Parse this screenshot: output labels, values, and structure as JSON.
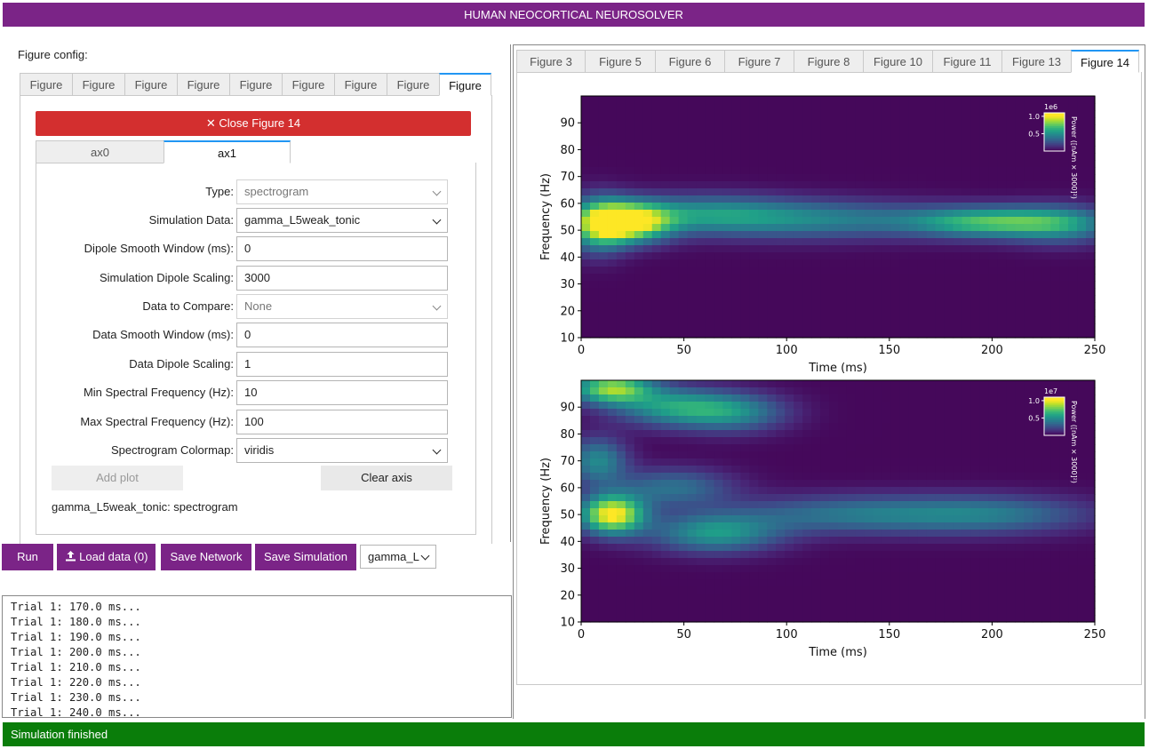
{
  "app_title": "HUMAN NEOCORTICAL NEUROSOLVER",
  "figure_config_label": "Figure config:",
  "figure_tabs": [
    "Figure",
    "Figure",
    "Figure",
    "Figure",
    "Figure",
    "Figure",
    "Figure",
    "Figure",
    "Figure"
  ],
  "close_button": "✕ Close Figure 14",
  "ax_tabs": [
    "ax0",
    "ax1"
  ],
  "form": {
    "type": {
      "label": "Type:",
      "value": "spectrogram"
    },
    "simulation_data": {
      "label": "Simulation Data:",
      "value": "gamma_L5weak_tonic"
    },
    "dipole_smooth": {
      "label": "Dipole Smooth Window (ms):",
      "value": "0"
    },
    "sim_dipole_scaling": {
      "label": "Simulation Dipole Scaling:",
      "value": "3000"
    },
    "data_to_compare": {
      "label": "Data to Compare:",
      "value": "None"
    },
    "data_smooth": {
      "label": "Data Smooth Window (ms):",
      "value": "0"
    },
    "data_dipole_scaling": {
      "label": "Data Dipole Scaling:",
      "value": "1"
    },
    "min_freq": {
      "label": "Min Spectral Frequency (Hz):",
      "value": "10"
    },
    "max_freq": {
      "label": "Max Spectral Frequency (Hz):",
      "value": "100"
    },
    "colormap": {
      "label": "Spectrogram Colormap:",
      "value": "viridis"
    }
  },
  "add_plot": "Add plot",
  "clear_axis": "Clear axis",
  "plot_description": "gamma_L5weak_tonic: spectrogram",
  "buttons": {
    "run": "Run",
    "load_data": "Load data (0)",
    "save_network": "Save Network",
    "save_simulation": "Save Simulation",
    "sim_select_value": "gamma_L"
  },
  "log_lines": [
    "Trial 1: 170.0 ms...",
    "Trial 1: 180.0 ms...",
    "Trial 1: 190.0 ms...",
    "Trial 1: 200.0 ms...",
    "Trial 1: 210.0 ms...",
    "Trial 1: 220.0 ms...",
    "Trial 1: 230.0 ms...",
    "Trial 1: 240.0 ms..."
  ],
  "right_tabs": [
    "Figure 3",
    "Figure 5",
    "Figure 6",
    "Figure 7",
    "Figure 8",
    "Figure 10",
    "Figure 11",
    "Figure 13",
    "Figure 14"
  ],
  "status": "Simulation finished",
  "colors": {
    "header": "#7b2487",
    "close": "#d32f2f",
    "status": "#0a7d0a",
    "tab_accent": "#2196f3"
  },
  "chart_data": [
    {
      "type": "heatmap",
      "xlabel": "Time (ms)",
      "ylabel": "Frequency (Hz)",
      "xlim": [
        0,
        250
      ],
      "ylim": [
        10,
        100
      ],
      "xticks": [
        0,
        50,
        100,
        150,
        200,
        250
      ],
      "yticks": [
        10,
        20,
        30,
        40,
        50,
        60,
        70,
        80,
        90
      ],
      "colormap": "viridis",
      "colorbar": {
        "label": "Power ([nAm × 3000]²)",
        "scale": "1e6",
        "ticks": [
          0.5,
          1.0
        ]
      },
      "blobs": [
        {
          "t": 23,
          "f": 53,
          "amp": 1.0,
          "st": 14,
          "sf": 5
        },
        {
          "t": 8,
          "f": 52,
          "amp": 0.6,
          "st": 10,
          "sf": 7
        },
        {
          "t": 60,
          "f": 56,
          "amp": 0.4,
          "st": 28,
          "sf": 5
        },
        {
          "t": 115,
          "f": 54,
          "amp": 0.4,
          "st": 40,
          "sf": 5
        },
        {
          "t": 200,
          "f": 53,
          "amp": 0.65,
          "st": 28,
          "sf": 4
        },
        {
          "t": 235,
          "f": 52,
          "amp": 0.35,
          "st": 18,
          "sf": 5
        }
      ]
    },
    {
      "type": "heatmap",
      "xlabel": "Time (ms)",
      "ylabel": "Frequency (Hz)",
      "xlim": [
        0,
        250
      ],
      "ylim": [
        10,
        100
      ],
      "xticks": [
        0,
        50,
        100,
        150,
        200,
        250
      ],
      "yticks": [
        10,
        20,
        30,
        40,
        50,
        60,
        70,
        80,
        90
      ],
      "colormap": "viridis",
      "colorbar": {
        "label": "Power ([nAm × 3000]²)",
        "scale": "1e7",
        "ticks": [
          0.5,
          1.0
        ]
      },
      "blobs": [
        {
          "t": 15,
          "f": 50,
          "amp": 1.0,
          "st": 11,
          "sf": 5
        },
        {
          "t": 15,
          "f": 97,
          "amp": 0.8,
          "st": 14,
          "sf": 4
        },
        {
          "t": 45,
          "f": 90,
          "amp": 0.5,
          "st": 20,
          "sf": 5
        },
        {
          "t": 75,
          "f": 88,
          "amp": 0.4,
          "st": 18,
          "sf": 5
        },
        {
          "t": 8,
          "f": 70,
          "amp": 0.45,
          "st": 10,
          "sf": 6
        },
        {
          "t": 65,
          "f": 43,
          "amp": 0.5,
          "st": 22,
          "sf": 5
        },
        {
          "t": 45,
          "f": 60,
          "amp": 0.35,
          "st": 20,
          "sf": 5
        },
        {
          "t": 130,
          "f": 50,
          "amp": 0.35,
          "st": 40,
          "sf": 5
        },
        {
          "t": 200,
          "f": 50,
          "amp": 0.35,
          "st": 35,
          "sf": 5
        }
      ]
    }
  ]
}
